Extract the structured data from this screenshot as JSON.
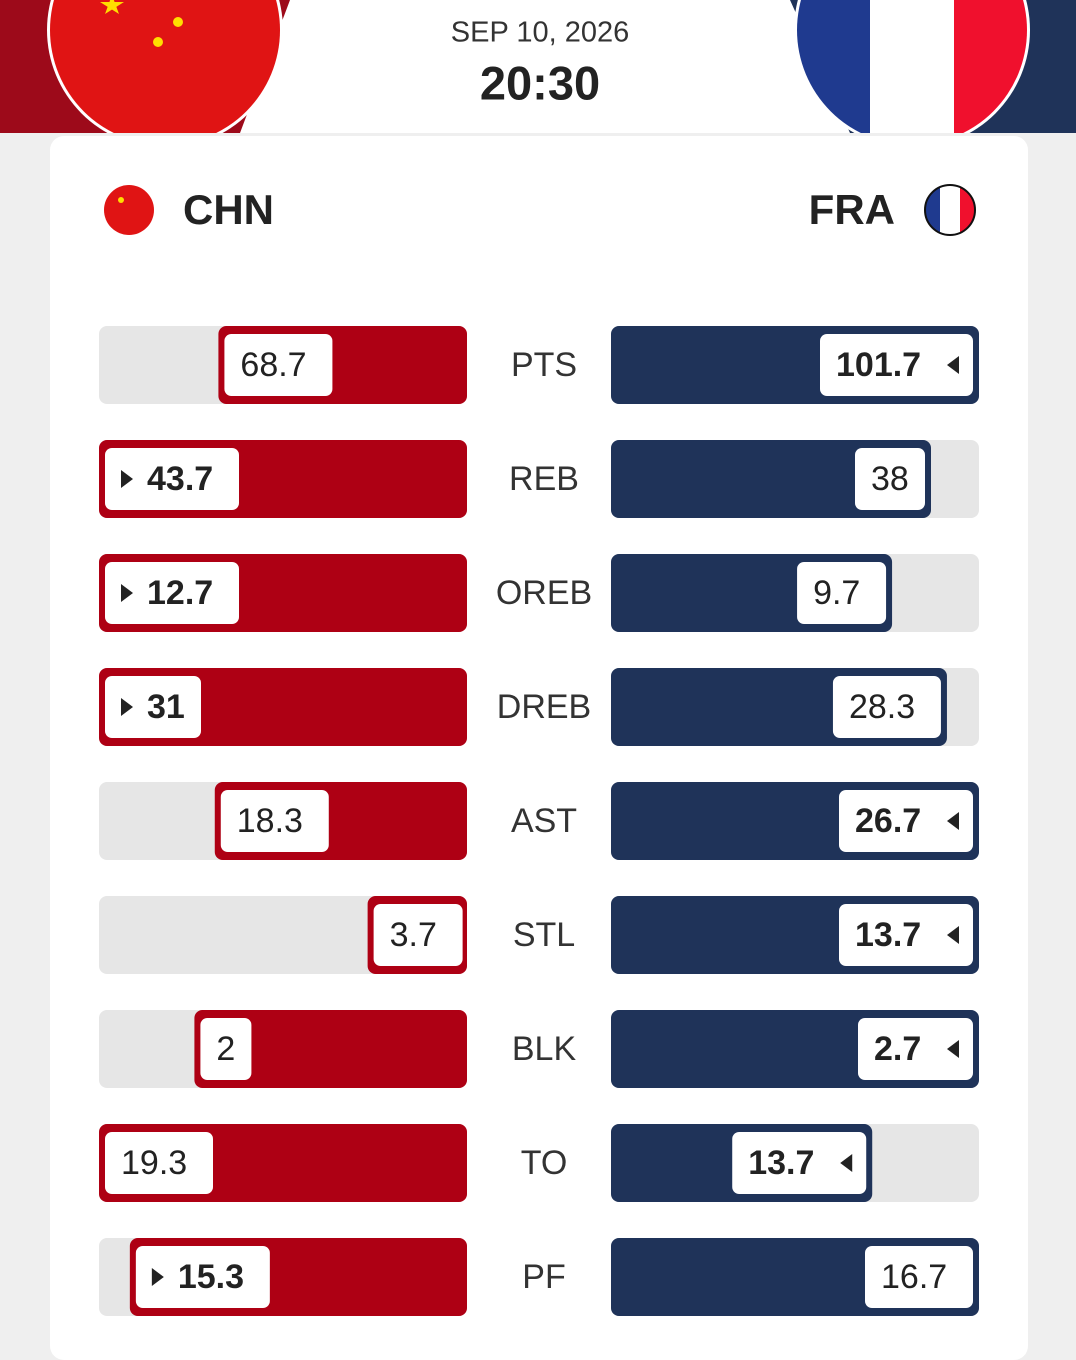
{
  "header": {
    "date": "SEP 10, 2026",
    "time": "20:30"
  },
  "chart_data": {
    "type": "butterfly",
    "categories": [
      "PTS",
      "REB",
      "OREB",
      "DREB",
      "AST",
      "STL",
      "BLK",
      "TO",
      "PF"
    ],
    "series": [
      {
        "name": "CHN",
        "color": "#ae0014",
        "values": [
          68.7,
          43.7,
          12.7,
          31,
          18.3,
          3.7,
          2,
          19.3,
          15.3
        ]
      },
      {
        "name": "FRA",
        "color": "#1f3359",
        "values": [
          101.7,
          38,
          9.7,
          28.3,
          26.7,
          13.7,
          2.7,
          13.7,
          16.7
        ]
      }
    ],
    "leader": [
      1,
      0,
      0,
      0,
      1,
      1,
      1,
      1,
      0
    ]
  }
}
